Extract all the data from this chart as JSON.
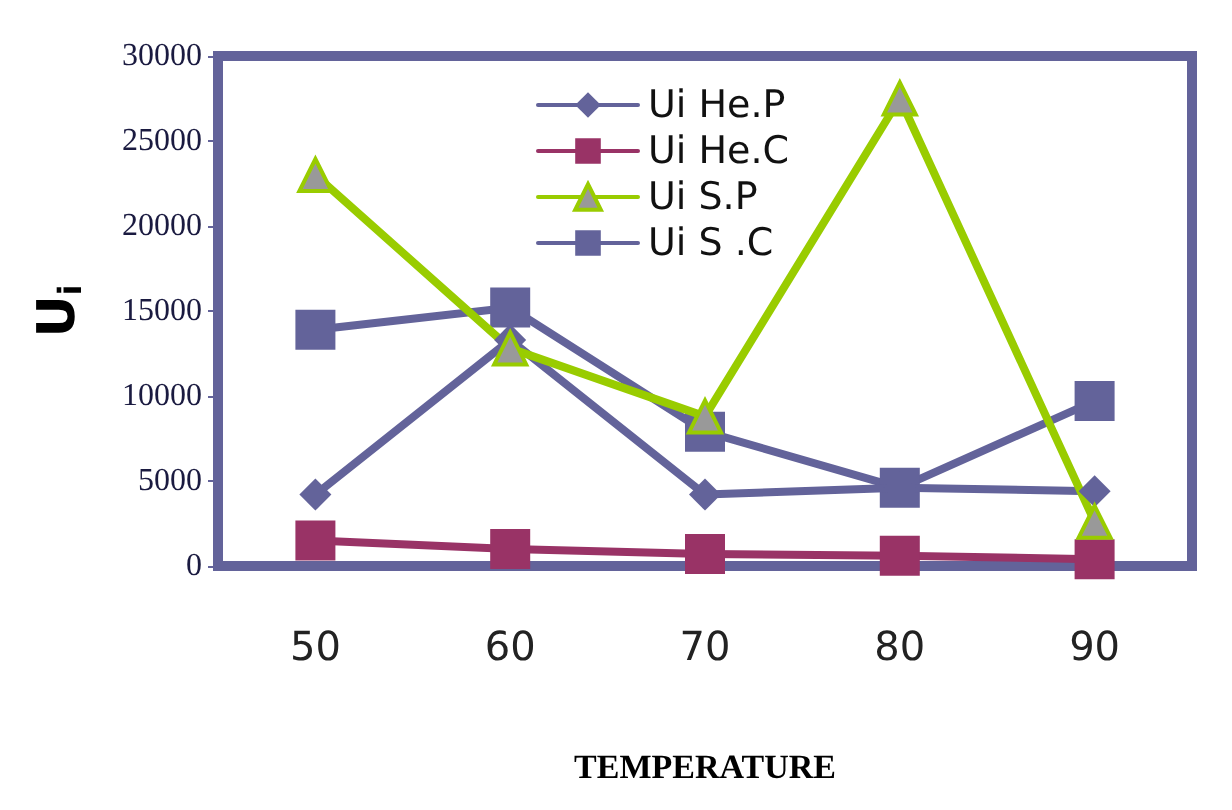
{
  "chart_data": {
    "type": "line",
    "xlabel": "TEMPERATURE",
    "ylabel": "U$_{i}$",
    "categories": [
      "50",
      "60",
      "70",
      "80",
      "90"
    ],
    "series": [
      {
        "name": "Ui He.P",
        "color": "#63639a",
        "marker": "diamond",
        "values": [
          4200,
          13300,
          4200,
          4600,
          4400
        ]
      },
      {
        "name": "Ui He.C",
        "color": "#993366",
        "marker": "square",
        "values": [
          1500,
          1000,
          700,
          600,
          400
        ]
      },
      {
        "name": "Ui S.P",
        "color": "#99cc00",
        "marker": "triangle",
        "values": [
          23000,
          12800,
          8800,
          27500,
          2600
        ]
      },
      {
        "name": "Ui S .C",
        "color": "#63639a",
        "marker": "square",
        "values": [
          13900,
          15200,
          7900,
          4600,
          9700
        ]
      }
    ],
    "ylim": [
      0,
      30000
    ],
    "yticks": [
      0,
      5000,
      10000,
      15000,
      20000,
      25000,
      30000
    ],
    "grid": false,
    "legend": "top",
    "line_style": "solid"
  }
}
